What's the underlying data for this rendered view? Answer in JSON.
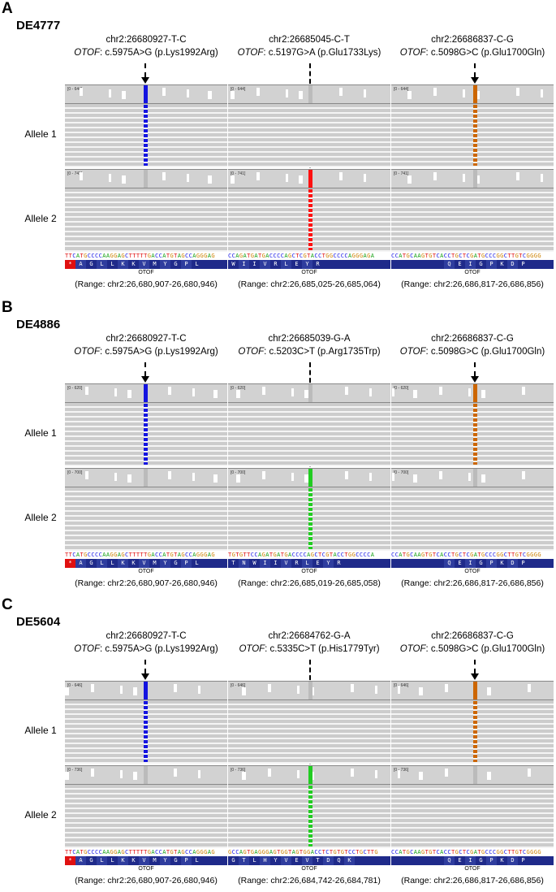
{
  "colors": {
    "blue": "#1414e0",
    "orange": "#cc6600",
    "red": "#ff1010",
    "green": "#22cc22",
    "green_dark": "#119911"
  },
  "panels": [
    {
      "letter": "A",
      "sample": "DE4777",
      "variants": [
        {
          "id": "chr2:26680927-T-C",
          "gene": "OTOF",
          "hgvs": ": c.5975A>G (p.Lys1992Arg)",
          "color": "#1414e0",
          "allele": 1,
          "cov_label": "[0 - 644]",
          "cov2_label": "[0 - 741]",
          "seq": "TTCATGCCCCAAGGAGCTTTTTGACCATGTAGCCAGGGAG",
          "aa": [
            "*",
            "A",
            "G",
            "L",
            "L",
            "K",
            "K",
            "V",
            "M",
            "Y",
            "G",
            "P",
            "L"
          ],
          "gene_label": "OTOF",
          "range": "(Range: chr2:26,680,907-26,680,946)"
        },
        {
          "id": "chr2:26685045-C-T",
          "gene": "OTOF",
          "hgvs": ": c.5197G>A (p.Glu1733Lys)",
          "color": "#ff1010",
          "allele": 2,
          "cov_label": "[0 - 644]",
          "cov2_label": "[0 - 741]",
          "seq": "CCAGATGATGACCCCAGCTCGTACCTGGCCCCAGGGAGA",
          "aa": [
            "W",
            "I",
            "I",
            "V",
            "R",
            "L",
            "E",
            "Y",
            "R",
            "",
            "",
            "",
            ""
          ],
          "gene_label": "OTOF",
          "range": "(Range: chr2:26,685,025-26,685,064)"
        },
        {
          "id": "chr2:26686837-C-G",
          "gene": "OTOF",
          "hgvs": ": c.5098G>C (p.Glu1700Gln)",
          "color": "#cc6600",
          "allele": 1,
          "cov_label": "[0 - 644]",
          "cov2_label": "[0 - 741]",
          "seq": "CCATGCAAGTGTCACCTGCTCGATGCCCGGCTTGTCGGGG",
          "aa": [
            "",
            "",
            "",
            "",
            "",
            "Q",
            "E",
            "I",
            "G",
            "P",
            "K",
            "D",
            "P"
          ],
          "gene_label": "OTOF",
          "range": "(Range: chr2:26,686,817-26,686,856)"
        }
      ],
      "allele_labels": [
        "Allele 1",
        "Allele 2"
      ]
    },
    {
      "letter": "B",
      "sample": "DE4886",
      "variants": [
        {
          "id": "chr2:26680927-T-C",
          "gene": "OTOF",
          "hgvs": ": c.5975A>G (p.Lys1992Arg)",
          "color": "#1414e0",
          "allele": 1,
          "cov_label": "[0 - 620]",
          "cov2_label": "[0 - 700]",
          "seq": "TTCATGCCCCAAGGAGCTTTTTGACCATGTAGCCAGGGAG",
          "aa": [
            "*",
            "A",
            "G",
            "L",
            "L",
            "K",
            "K",
            "V",
            "M",
            "Y",
            "G",
            "P",
            "L"
          ],
          "gene_label": "OTOF",
          "range": "(Range: chr2:26,680,907-26,680,946)"
        },
        {
          "id": "chr2:26685039-G-A",
          "gene": "OTOF",
          "hgvs": ": c.5203C>T (p.Arg1735Trp)",
          "color": "#22cc22",
          "allele": 2,
          "cov_label": "[0 - 620]",
          "cov2_label": "[0 - 700]",
          "seq": "TGTGTTCCAGATGATGACCCCAGCTCGTACCTGGCCCCA",
          "aa": [
            "T",
            "N",
            "W",
            "I",
            "I",
            "V",
            "R",
            "L",
            "E",
            "Y",
            "R",
            "",
            ""
          ],
          "gene_label": "OTOF",
          "range": "(Range: chr2:26,685,019-26,685,058)"
        },
        {
          "id": "chr2:26686837-C-G",
          "gene": "OTOF",
          "hgvs": ": c.5098G>C (p.Glu1700Gln)",
          "color": "#cc6600",
          "allele": 1,
          "cov_label": "[0 - 620]",
          "cov2_label": "[0 - 700]",
          "seq": "CCATGCAAGTGTCACCTGCTCGATGCCCGGCTTGTCGGGG",
          "aa": [
            "",
            "",
            "",
            "",
            "",
            "Q",
            "E",
            "I",
            "G",
            "P",
            "K",
            "D",
            "P"
          ],
          "gene_label": "OTOF",
          "range": "(Range: chr2:26,686,817-26,686,856)"
        }
      ],
      "allele_labels": [
        "Allele 1",
        "Allele 2"
      ]
    },
    {
      "letter": "C",
      "sample": "DE5604",
      "variants": [
        {
          "id": "chr2:26680927-T-C",
          "gene": "OTOF",
          "hgvs": ": c.5975A>G (p.Lys1992Arg)",
          "color": "#1414e0",
          "allele": 1,
          "cov_label": "[0 - 646]",
          "cov2_label": "[0 - 736]",
          "seq": "TTCATGCCCCAAGGAGCTTTTTGACCATGTAGCCAGGGAG",
          "aa": [
            "*",
            "A",
            "G",
            "L",
            "L",
            "K",
            "K",
            "V",
            "M",
            "Y",
            "G",
            "P",
            "L"
          ],
          "gene_label": "OTOF",
          "range": "(Range: chr2:26,680,907-26,680,946)"
        },
        {
          "id": "chr2:26684762-G-A",
          "gene": "OTOF",
          "hgvs": ": c.5335C>T (p.His1779Tyr)",
          "color": "#22cc22",
          "allele": 2,
          "cov_label": "[0 - 646]",
          "cov2_label": "[0 - 736]",
          "seq": "GCCAGTGAGGGAGTGGTAGTGGACCTCTGTGTCCTGCTTG",
          "aa": [
            "G",
            "T",
            "L",
            "H",
            "Y",
            "V",
            "E",
            "V",
            "T",
            "D",
            "Q",
            "K",
            ""
          ],
          "gene_label": "OTOF",
          "range": "(Range: chr2:26,684,742-26,684,781)"
        },
        {
          "id": "chr2:26686837-C-G",
          "gene": "OTOF",
          "hgvs": ": c.5098G>C (p.Glu1700Gln)",
          "color": "#cc6600",
          "allele": 1,
          "cov_label": "[0 - 646]",
          "cov2_label": "[0 - 736]",
          "seq": "CCATGCAAGTGTCACCTGCTCGATGCCCGGCTTGTCGGGG",
          "aa": [
            "",
            "",
            "",
            "",
            "",
            "Q",
            "E",
            "I",
            "G",
            "P",
            "K",
            "D",
            "P"
          ],
          "gene_label": "OTOF",
          "range": "(Range: chr2:26,686,817-26,686,856)"
        }
      ],
      "allele_labels": [
        "Allele 1",
        "Allele 2"
      ]
    }
  ]
}
